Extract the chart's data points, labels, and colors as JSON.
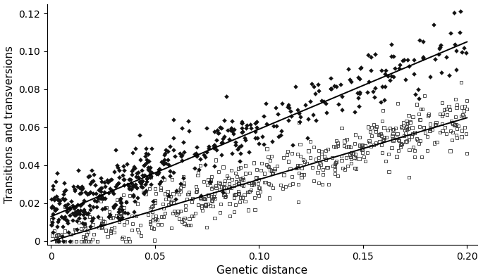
{
  "title": "",
  "xlabel": "Genetic distance",
  "ylabel": "Transitions and transversions",
  "xlim": [
    -0.002,
    0.205
  ],
  "ylim": [
    -0.002,
    0.125
  ],
  "xticks": [
    0,
    0.05,
    0.1,
    0.15,
    0.2
  ],
  "yticks": [
    0,
    0.02,
    0.04,
    0.06,
    0.08,
    0.1,
    0.12
  ],
  "transitions_line": {
    "x0": 0.0,
    "y0": 0.013,
    "x1": 0.2,
    "y1": 0.105
  },
  "transversions_line": {
    "x0": 0.0,
    "y0": 0.0,
    "x1": 0.2,
    "y1": 0.065
  },
  "random_seed": 7,
  "n_points_transitions": 500,
  "n_points_transversions": 600,
  "scatter_color_transitions": "#111111",
  "scatter_color_transversions": "#333333",
  "line_color": "#000000",
  "background_color": "#ffffff",
  "axis_label_fontsize": 11,
  "tick_fontsize": 10,
  "ts_noise": 0.008,
  "tv_noise": 0.007,
  "marker_size_ts": 9,
  "marker_size_tv": 9
}
